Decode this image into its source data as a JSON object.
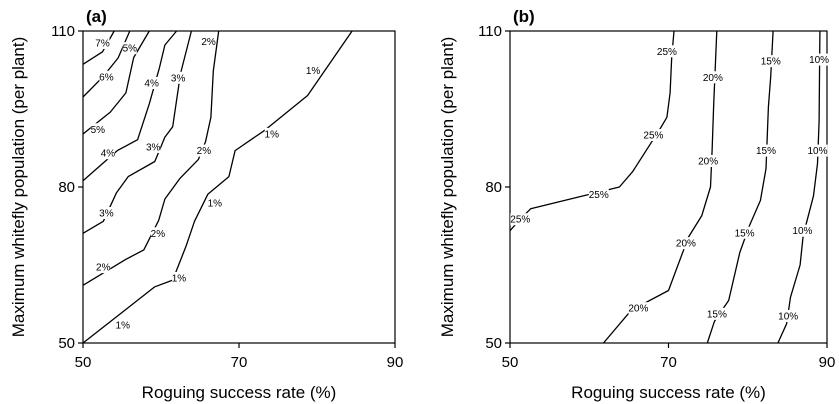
{
  "chart_data": [
    {
      "type": "contour",
      "panel_label": "(a)",
      "xlabel": "Roguing success rate (%)",
      "ylabel": "Maximum whitefly population (per plant)",
      "xlim": [
        50,
        90
      ],
      "ylim": [
        50,
        110
      ],
      "xticks": [
        50,
        70,
        90
      ],
      "yticks": [
        50,
        80,
        110
      ],
      "contours": [
        {
          "level": "1%",
          "points": [
            [
              50,
              50
            ],
            [
              59.2,
              60.8
            ],
            [
              61.5,
              62.1
            ],
            [
              63.2,
              68.6
            ],
            [
              64.3,
              73.4
            ],
            [
              66.0,
              78.6
            ],
            [
              68.7,
              82.0
            ],
            [
              69.5,
              87.0
            ],
            [
              73.3,
              90.9
            ],
            [
              78.8,
              97.6
            ],
            [
              84.5,
              110
            ]
          ],
          "labels": [
            [
              55.1,
              53.5
            ],
            [
              62.3,
              62.5
            ],
            [
              66.9,
              76.9
            ],
            [
              74.2,
              90.2
            ],
            [
              79.5,
              102.4
            ]
          ]
        },
        {
          "level": "2%",
          "points": [
            [
              50,
              61.1
            ],
            [
              55.5,
              66.1
            ],
            [
              57.8,
              67.9
            ],
            [
              59.7,
              73.6
            ],
            [
              60.5,
              77.7
            ],
            [
              62.4,
              81.6
            ],
            [
              64.8,
              85.3
            ],
            [
              65.7,
              88.7
            ],
            [
              66.4,
              93.4
            ],
            [
              66.7,
              102.3
            ],
            [
              67.4,
              110
            ]
          ],
          "labels": [
            [
              52.6,
              64.6
            ],
            [
              59.6,
              71.1
            ],
            [
              65.5,
              87.0
            ],
            [
              66.1,
              108.0
            ]
          ]
        },
        {
          "level": "3%",
          "points": [
            [
              50,
              71.1
            ],
            [
              52.6,
              73.4
            ],
            [
              54.3,
              78.9
            ],
            [
              55.8,
              82.0
            ],
            [
              59.2,
              84.9
            ],
            [
              60.5,
              89.6
            ],
            [
              61.5,
              91.6
            ],
            [
              62.5,
              101.8
            ],
            [
              63.9,
              110
            ]
          ],
          "labels": [
            [
              53.0,
              75.0
            ],
            [
              59.0,
              87.7
            ],
            [
              62.2,
              101.0
            ]
          ]
        },
        {
          "level": "4%",
          "points": [
            [
              50,
              81.2
            ],
            [
              54.4,
              87.0
            ],
            [
              57.0,
              89.1
            ],
            [
              58.5,
              96.0
            ],
            [
              59.8,
              102.9
            ],
            [
              60.5,
              107.3
            ],
            [
              62.0,
              110
            ]
          ],
          "labels": [
            [
              53.2,
              86.5
            ],
            [
              58.8,
              100.0
            ]
          ]
        },
        {
          "level": "5%",
          "points": [
            [
              50,
              90.2
            ],
            [
              53.5,
              94.4
            ],
            [
              55.5,
              98.1
            ],
            [
              56.5,
              104.9
            ],
            [
              58.5,
              110
            ]
          ],
          "labels": [
            [
              51.9,
              91.1
            ],
            [
              56.0,
              106.7
            ]
          ]
        },
        {
          "level": "6%",
          "points": [
            [
              50,
              97.3
            ],
            [
              52.5,
              101.1
            ],
            [
              54.5,
              104.8
            ],
            [
              56.0,
              110
            ]
          ],
          "labels": [
            [
              53.0,
              101.2
            ]
          ]
        },
        {
          "level": "7%",
          "points": [
            [
              50,
              103.6
            ],
            [
              52.5,
              106.0
            ],
            [
              54.0,
              110
            ]
          ],
          "labels": [
            [
              52.5,
              107.7
            ]
          ]
        }
      ]
    },
    {
      "type": "contour",
      "panel_label": "(b)",
      "xlabel": "Roguing success rate (%)",
      "ylabel": "Maximum whitefly population (per plant)",
      "xlim": [
        50,
        90
      ],
      "ylim": [
        50,
        110
      ],
      "xticks": [
        50,
        70,
        90
      ],
      "yticks": [
        50,
        80,
        110
      ],
      "contours": [
        {
          "level": "25%",
          "points": [
            [
              50,
              71.6
            ],
            [
              51.3,
              73.8
            ],
            [
              52.6,
              75.8
            ],
            [
              63.8,
              80.0
            ],
            [
              65.5,
              83.0
            ],
            [
              67.8,
              88.5
            ],
            [
              68.9,
              91.1
            ],
            [
              69.8,
              93.4
            ],
            [
              70.2,
              98.1
            ],
            [
              70.4,
              104.9
            ],
            [
              70.7,
              110
            ]
          ],
          "labels": [
            [
              51.3,
              73.8
            ],
            [
              61.2,
              78.6
            ],
            [
              68.1,
              90.0
            ],
            [
              69.8,
              106.1
            ]
          ]
        },
        {
          "level": "20%",
          "points": [
            [
              61.8,
              50
            ],
            [
              65.3,
              56.3
            ],
            [
              70.0,
              60.1
            ],
            [
              72.5,
              70.3
            ],
            [
              74.2,
              74.5
            ],
            [
              75.3,
              80.0
            ],
            [
              75.5,
              87.0
            ],
            [
              75.7,
              95.9
            ],
            [
              75.9,
              103.2
            ],
            [
              76.1,
              110
            ]
          ],
          "labels": [
            [
              66.2,
              56.7
            ],
            [
              72.2,
              69.2
            ],
            [
              75.0,
              85.0
            ],
            [
              75.6,
              101.1
            ]
          ]
        },
        {
          "level": "15%",
          "points": [
            [
              74.9,
              50
            ],
            [
              75.8,
              54.2
            ],
            [
              77.6,
              58.2
            ],
            [
              79.0,
              67.4
            ],
            [
              80.2,
              72.5
            ],
            [
              81.6,
              77.4
            ],
            [
              82.3,
              83.5
            ],
            [
              82.6,
              95.4
            ],
            [
              82.9,
              101.2
            ],
            [
              83.2,
              110
            ]
          ],
          "labels": [
            [
              76.1,
              55.6
            ],
            [
              79.6,
              71.2
            ],
            [
              82.3,
              87.0
            ],
            [
              82.9,
              104.2
            ]
          ]
        },
        {
          "level": "10%",
          "points": [
            [
              83.8,
              50
            ],
            [
              84.9,
              53.7
            ],
            [
              85.4,
              58.8
            ],
            [
              86.6,
              65.0
            ],
            [
              87.0,
              70.7
            ],
            [
              88.3,
              78.3
            ],
            [
              88.8,
              84.5
            ],
            [
              89.0,
              92.7
            ],
            [
              89.1,
              110
            ]
          ],
          "labels": [
            [
              85.1,
              55.2
            ],
            [
              86.9,
              71.6
            ],
            [
              88.8,
              87.0
            ],
            [
              89.0,
              104.5
            ]
          ]
        }
      ]
    }
  ]
}
